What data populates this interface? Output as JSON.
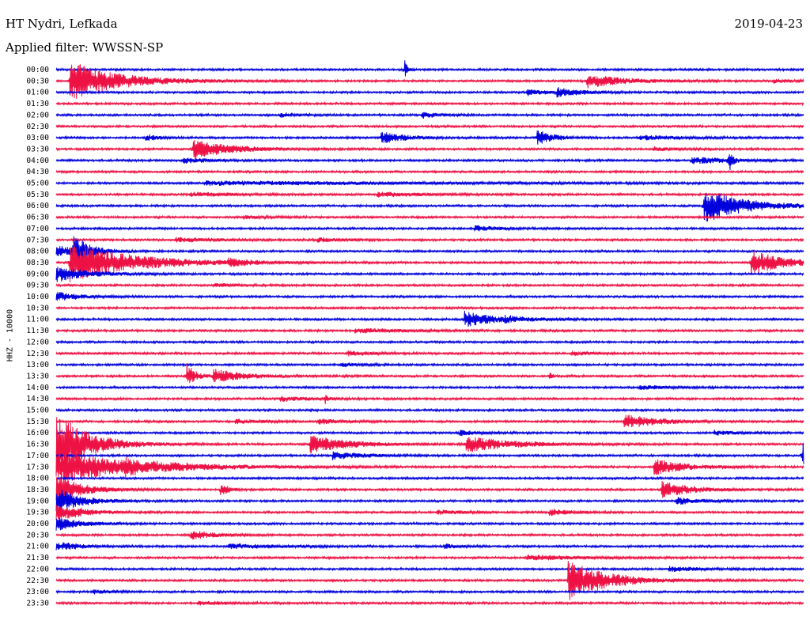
{
  "header": {
    "station": "HT Nydri, Lefkada",
    "date": "2019-04-23",
    "filter": "Applied filter: WWSSN-SP"
  },
  "chart_data": {
    "type": "helicorder",
    "channel_label": "HHZ - 10000",
    "line_duration_minutes": 30,
    "colors": [
      "#0000dd",
      "#ee1144"
    ],
    "rows": [
      {
        "label": "00:00",
        "events": [
          {
            "t": 0.466,
            "amp": 0.85,
            "dur": 0.004
          }
        ]
      },
      {
        "label": "00:30",
        "events": [
          {
            "t": 0.018,
            "amp": 1.8,
            "dur": 0.06
          },
          {
            "t": 0.71,
            "amp": 0.6,
            "dur": 0.05
          },
          {
            "t": 0.96,
            "amp": 0.15,
            "dur": 0.02
          }
        ]
      },
      {
        "label": "01:00",
        "events": [
          {
            "t": 0.63,
            "amp": 0.3,
            "dur": 0.02
          },
          {
            "t": 0.67,
            "amp": 0.4,
            "dur": 0.03
          }
        ]
      },
      {
        "label": "01:30",
        "events": []
      },
      {
        "label": "02:00",
        "events": [
          {
            "t": 0.3,
            "amp": 0.2,
            "dur": 0.02
          },
          {
            "t": 0.49,
            "amp": 0.3,
            "dur": 0.02
          }
        ]
      },
      {
        "label": "02:30",
        "events": []
      },
      {
        "label": "03:00",
        "events": [
          {
            "t": 0.12,
            "amp": 0.25,
            "dur": 0.02
          },
          {
            "t": 0.435,
            "amp": 0.5,
            "dur": 0.03
          },
          {
            "t": 0.643,
            "amp": 0.7,
            "dur": 0.02
          },
          {
            "t": 0.78,
            "amp": 0.2,
            "dur": 0.05
          }
        ]
      },
      {
        "label": "03:30",
        "events": [
          {
            "t": 0.183,
            "amp": 0.85,
            "dur": 0.05
          },
          {
            "t": 0.8,
            "amp": 0.15,
            "dur": 0.03
          }
        ]
      },
      {
        "label": "04:00",
        "events": [
          {
            "t": 0.17,
            "amp": 0.25,
            "dur": 0.03
          },
          {
            "t": 0.85,
            "amp": 0.3,
            "dur": 0.05
          },
          {
            "t": 0.9,
            "amp": 1.0,
            "dur": 0.004
          }
        ]
      },
      {
        "label": "04:30",
        "events": []
      },
      {
        "label": "05:00",
        "events": [
          {
            "t": 0.2,
            "amp": 0.15,
            "dur": 0.3
          }
        ]
      },
      {
        "label": "05:30",
        "events": [
          {
            "t": 0.18,
            "amp": 0.2,
            "dur": 0.05
          },
          {
            "t": 0.43,
            "amp": 0.2,
            "dur": 0.06
          }
        ]
      },
      {
        "label": "06:00",
        "events": [
          {
            "t": 0.866,
            "amp": 1.6,
            "dur": 0.05
          }
        ]
      },
      {
        "label": "06:30",
        "events": [
          {
            "t": 0.25,
            "amp": 0.15,
            "dur": 0.03
          }
        ]
      },
      {
        "label": "07:00",
        "events": [
          {
            "t": 0.56,
            "amp": 0.25,
            "dur": 0.03
          }
        ]
      },
      {
        "label": "07:30",
        "events": [
          {
            "t": 0.16,
            "amp": 0.2,
            "dur": 0.05
          },
          {
            "t": 0.35,
            "amp": 0.2,
            "dur": 0.03
          }
        ]
      },
      {
        "label": "08:00",
        "events": [
          {
            "t": 0.0,
            "amp": 0.5,
            "dur": 0.03
          },
          {
            "t": 0.023,
            "amp": 1.4,
            "dur": 0.02
          }
        ]
      },
      {
        "label": "08:30",
        "events": [
          {
            "t": 0.018,
            "amp": 1.8,
            "dur": 0.08
          },
          {
            "t": 0.23,
            "amp": 0.3,
            "dur": 0.03
          },
          {
            "t": 0.93,
            "amp": 1.2,
            "dur": 0.04
          }
        ]
      },
      {
        "label": "09:00",
        "events": [
          {
            "t": 0.0,
            "amp": 0.7,
            "dur": 0.04
          }
        ]
      },
      {
        "label": "09:30",
        "events": [
          {
            "t": 0.21,
            "amp": 0.15,
            "dur": 0.03
          }
        ]
      },
      {
        "label": "10:00",
        "events": [
          {
            "t": 0.0,
            "amp": 0.4,
            "dur": 0.03
          }
        ]
      },
      {
        "label": "10:30",
        "events": []
      },
      {
        "label": "11:00",
        "events": [
          {
            "t": 0.546,
            "amp": 0.7,
            "dur": 0.04
          },
          {
            "t": 0.6,
            "amp": 0.15,
            "dur": 0.04
          }
        ]
      },
      {
        "label": "11:30",
        "events": [
          {
            "t": 0.4,
            "amp": 0.2,
            "dur": 0.06
          }
        ]
      },
      {
        "label": "12:00",
        "events": []
      },
      {
        "label": "12:30",
        "events": [
          {
            "t": 0.39,
            "amp": 0.2,
            "dur": 0.03
          },
          {
            "t": 0.69,
            "amp": 0.2,
            "dur": 0.02
          }
        ]
      },
      {
        "label": "13:00",
        "events": [
          {
            "t": 0.38,
            "amp": 0.15,
            "dur": 0.03
          }
        ]
      },
      {
        "label": "13:30",
        "events": [
          {
            "t": 0.175,
            "amp": 1.2,
            "dur": 0.01
          },
          {
            "t": 0.21,
            "amp": 0.6,
            "dur": 0.04
          },
          {
            "t": 0.66,
            "amp": 0.3,
            "dur": 0.004
          }
        ]
      },
      {
        "label": "14:00",
        "events": [
          {
            "t": 0.78,
            "amp": 0.2,
            "dur": 0.03
          }
        ]
      },
      {
        "label": "14:30",
        "events": [
          {
            "t": 0.3,
            "amp": 0.2,
            "dur": 0.04
          },
          {
            "t": 0.36,
            "amp": 0.4,
            "dur": 0.004
          }
        ]
      },
      {
        "label": "15:00",
        "events": []
      },
      {
        "label": "15:30",
        "events": [
          {
            "t": 0.24,
            "amp": 0.2,
            "dur": 0.03
          },
          {
            "t": 0.35,
            "amp": 0.25,
            "dur": 0.03
          },
          {
            "t": 0.76,
            "amp": 0.7,
            "dur": 0.04
          }
        ]
      },
      {
        "label": "16:00",
        "events": [
          {
            "t": 0.54,
            "amp": 0.25,
            "dur": 0.02
          },
          {
            "t": 0.88,
            "amp": 0.2,
            "dur": 0.03
          }
        ]
      },
      {
        "label": "16:30",
        "events": [
          {
            "t": 0.0,
            "amp": 3.0,
            "dur": 0.04
          },
          {
            "t": 0.34,
            "amp": 0.8,
            "dur": 0.05
          },
          {
            "t": 0.548,
            "amp": 0.7,
            "dur": 0.06
          }
        ]
      },
      {
        "label": "17:00",
        "events": [
          {
            "t": 0.37,
            "amp": 0.35,
            "dur": 0.04
          },
          {
            "t": 0.998,
            "amp": 1.5,
            "dur": 0.004
          }
        ]
      },
      {
        "label": "17:30",
        "events": [
          {
            "t": 0.0,
            "amp": 1.5,
            "dur": 0.1
          },
          {
            "t": 0.09,
            "amp": 0.3,
            "dur": 0.03
          },
          {
            "t": 0.8,
            "amp": 0.7,
            "dur": 0.04
          }
        ]
      },
      {
        "label": "18:00",
        "events": []
      },
      {
        "label": "18:30",
        "events": [
          {
            "t": 0.0,
            "amp": 1.5,
            "dur": 0.03
          },
          {
            "t": 0.22,
            "amp": 0.6,
            "dur": 0.01
          },
          {
            "t": 0.81,
            "amp": 0.7,
            "dur": 0.04
          }
        ]
      },
      {
        "label": "19:00",
        "events": [
          {
            "t": 0.0,
            "amp": 1.2,
            "dur": 0.03
          },
          {
            "t": 0.83,
            "amp": 0.35,
            "dur": 0.03
          }
        ]
      },
      {
        "label": "19:30",
        "events": [
          {
            "t": 0.0,
            "amp": 0.9,
            "dur": 0.03
          },
          {
            "t": 0.51,
            "amp": 0.2,
            "dur": 0.03
          },
          {
            "t": 0.66,
            "amp": 0.3,
            "dur": 0.03
          }
        ]
      },
      {
        "label": "20:00",
        "events": [
          {
            "t": 0.0,
            "amp": 0.6,
            "dur": 0.03
          }
        ]
      },
      {
        "label": "20:30",
        "events": [
          {
            "t": 0.18,
            "amp": 0.4,
            "dur": 0.03
          }
        ]
      },
      {
        "label": "21:00",
        "events": [
          {
            "t": 0.0,
            "amp": 0.4,
            "dur": 0.03
          },
          {
            "t": 0.23,
            "amp": 0.2,
            "dur": 0.06
          },
          {
            "t": 0.52,
            "amp": 0.2,
            "dur": 0.02
          }
        ]
      },
      {
        "label": "21:30",
        "events": [
          {
            "t": 0.63,
            "amp": 0.25,
            "dur": 0.06
          }
        ]
      },
      {
        "label": "22:00",
        "events": [
          {
            "t": 0.82,
            "amp": 0.2,
            "dur": 0.04
          }
        ]
      },
      {
        "label": "22:30",
        "events": [
          {
            "t": 0.685,
            "amp": 1.8,
            "dur": 0.05
          }
        ]
      },
      {
        "label": "23:00",
        "events": [
          {
            "t": 0.05,
            "amp": 0.15,
            "dur": 0.02
          }
        ]
      },
      {
        "label": "23:30",
        "events": [
          {
            "t": 0.19,
            "amp": 0.15,
            "dur": 0.04
          }
        ]
      }
    ]
  }
}
